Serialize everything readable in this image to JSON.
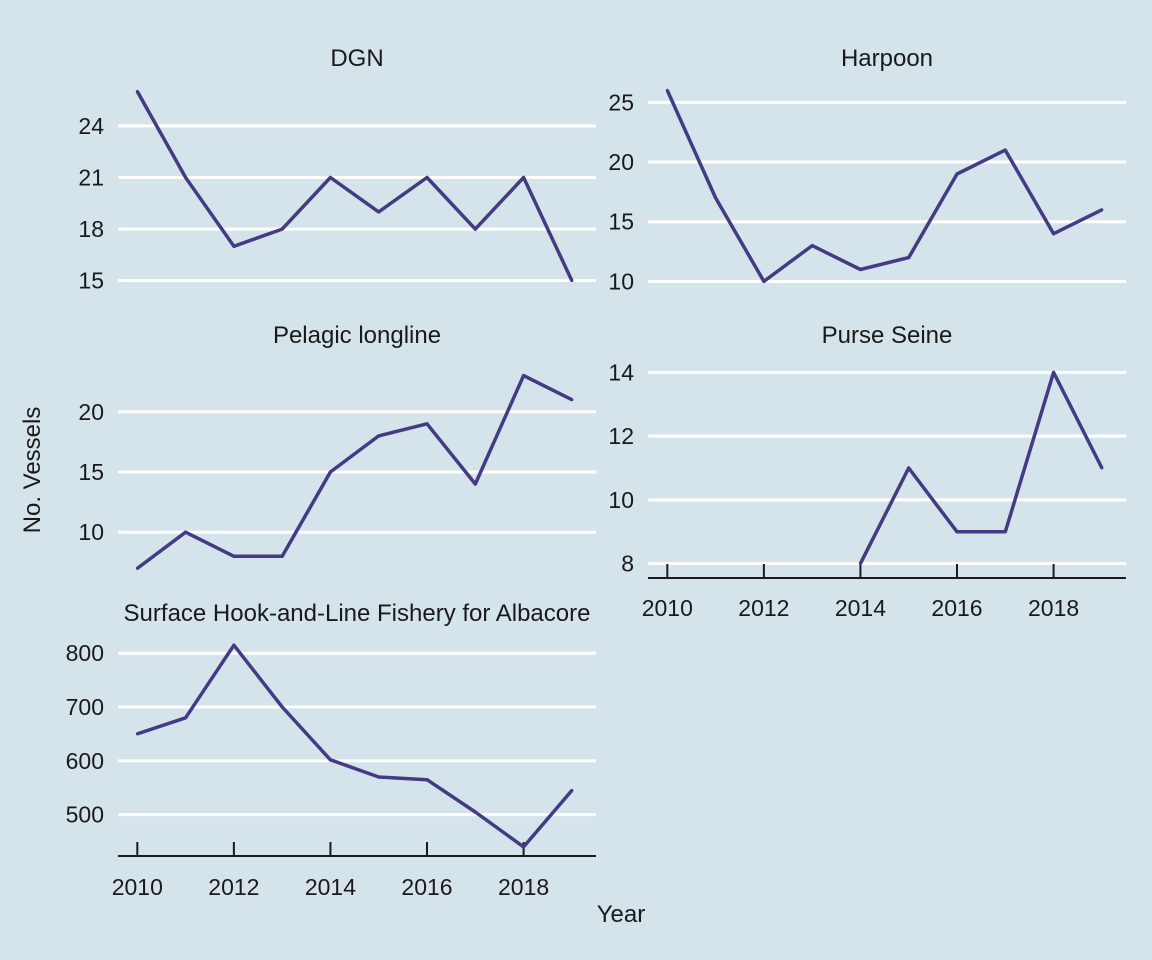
{
  "figure": {
    "ylabel": "No. Vessels",
    "xlabel": "Year",
    "background": "#d5e3ea",
    "line_color": "#443b84",
    "grid_color": "#ffffff"
  },
  "chart_data": [
    {
      "type": "line",
      "title": "DGN",
      "x": [
        2010,
        2011,
        2012,
        2013,
        2014,
        2015,
        2016,
        2017,
        2018,
        2019
      ],
      "values": [
        26,
        21,
        17,
        18,
        21,
        19,
        21,
        18,
        21,
        15
      ],
      "ylim": [
        14.4,
        26.2
      ],
      "yticks": [
        15,
        18,
        21,
        24
      ],
      "xlim": [
        2009.6,
        2019.5
      ],
      "xticks": [],
      "grid": true
    },
    {
      "type": "line",
      "title": "Harpoon",
      "x": [
        2010,
        2011,
        2012,
        2013,
        2014,
        2015,
        2016,
        2017,
        2018,
        2019
      ],
      "values": [
        26,
        17,
        10,
        13,
        11,
        12,
        19,
        21,
        14,
        16
      ],
      "ylim": [
        9.2,
        26.2
      ],
      "yticks": [
        10,
        15,
        20,
        25
      ],
      "xlim": [
        2009.6,
        2019.5
      ],
      "xticks": [],
      "grid": true
    },
    {
      "type": "line",
      "title": "Pelagic longline",
      "x": [
        2010,
        2011,
        2012,
        2013,
        2014,
        2015,
        2016,
        2017,
        2018,
        2019
      ],
      "values": [
        7,
        10,
        8,
        8,
        15,
        18,
        19,
        14,
        23,
        21
      ],
      "ylim": [
        6.2,
        23.8
      ],
      "yticks": [
        10,
        15,
        20
      ],
      "xlim": [
        2009.6,
        2019.5
      ],
      "xticks": [],
      "grid": true
    },
    {
      "type": "line",
      "title": "Purse Seine",
      "x": [
        2014,
        2015,
        2016,
        2017,
        2018,
        2019
      ],
      "values": [
        8,
        11,
        9,
        9,
        14,
        11
      ],
      "ylim": [
        7.8,
        14.2
      ],
      "yticks": [
        8,
        10,
        12,
        14
      ],
      "xlim": [
        2009.6,
        2019.5
      ],
      "xticks": [
        2010,
        2012,
        2014,
        2016,
        2018
      ],
      "grid": true
    },
    {
      "type": "line",
      "title": "Surface Hook-and-Line Fishery for Albacore",
      "x": [
        2010,
        2011,
        2012,
        2013,
        2014,
        2015,
        2016,
        2017,
        2018,
        2019
      ],
      "values": [
        650,
        680,
        815,
        700,
        602,
        570,
        565,
        505,
        440,
        545
      ],
      "ylim": [
        438,
        819
      ],
      "yticks": [
        500,
        600,
        700,
        800
      ],
      "xlim": [
        2009.6,
        2019.5
      ],
      "xticks": [
        2010,
        2012,
        2014,
        2016,
        2018
      ],
      "grid": true
    }
  ]
}
